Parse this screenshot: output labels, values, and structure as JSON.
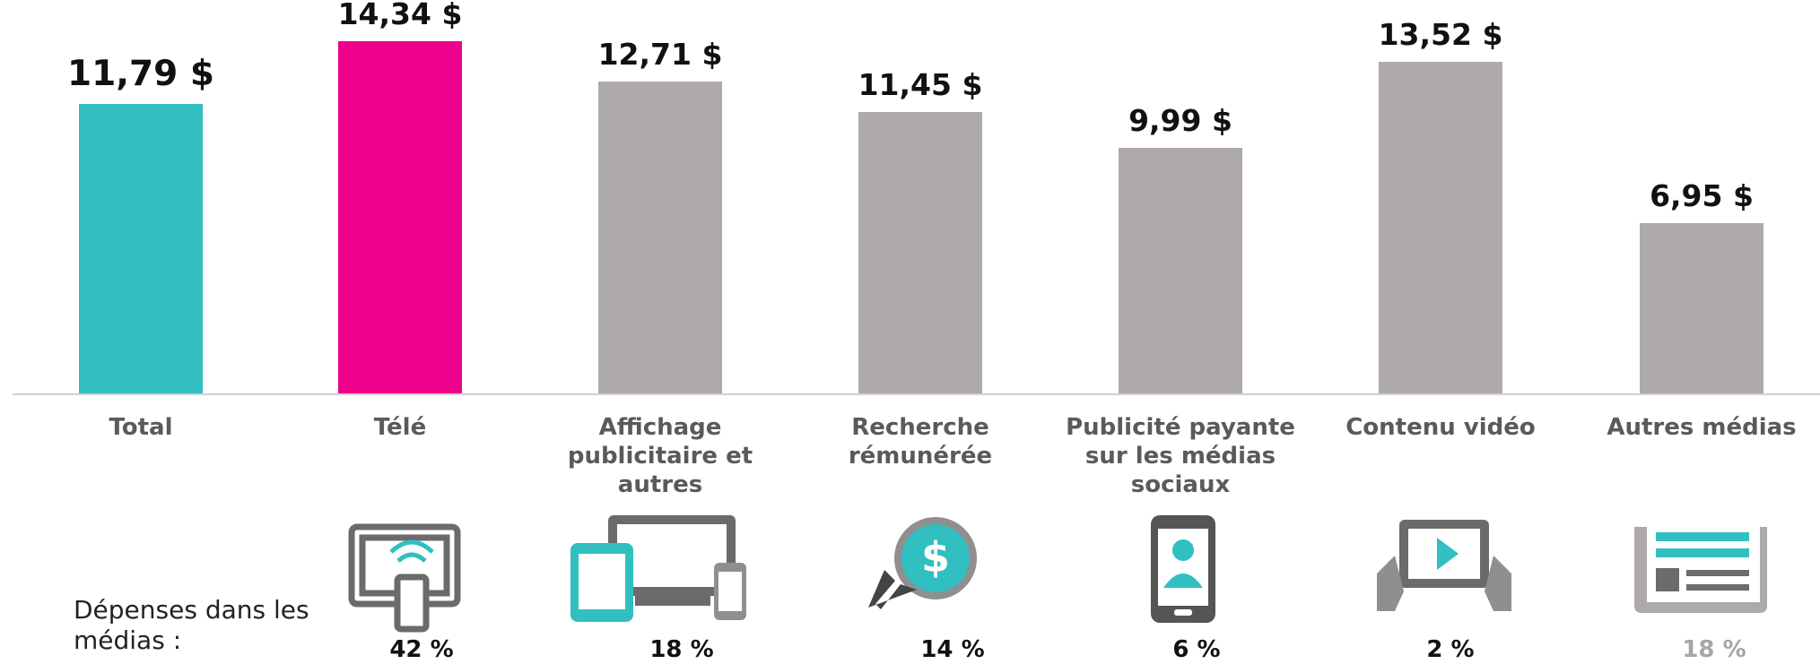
{
  "chart_data": {
    "type": "bar",
    "categories": [
      "Total",
      "Télé",
      "Affichage publicitaire et autres",
      "Recherche rémunérée",
      "Publicité payante sur les médias sociaux",
      "Contenu vidéo",
      "Autres médias"
    ],
    "values": [
      11.79,
      14.34,
      12.71,
      11.45,
      9.99,
      13.52,
      6.95
    ],
    "value_labels": [
      "11,79 $",
      "14,34 $",
      "12,71 $",
      "11,45 $",
      "9,99 $",
      "13,52 $",
      "6,95 $"
    ],
    "colors": [
      "#31bfc1",
      "#ec008c",
      "#aeaaa9",
      "#aeaaa9",
      "#aeaaa9",
      "#aeaaa9",
      "#aeaaa9"
    ]
  },
  "media_spend": {
    "label": "Dépenses dans les médias :",
    "values": [
      42,
      18,
      14,
      6,
      2,
      18
    ],
    "value_labels": [
      "42 %",
      "18 %",
      "14 %",
      "6 %",
      "2 %",
      "18 %"
    ]
  }
}
